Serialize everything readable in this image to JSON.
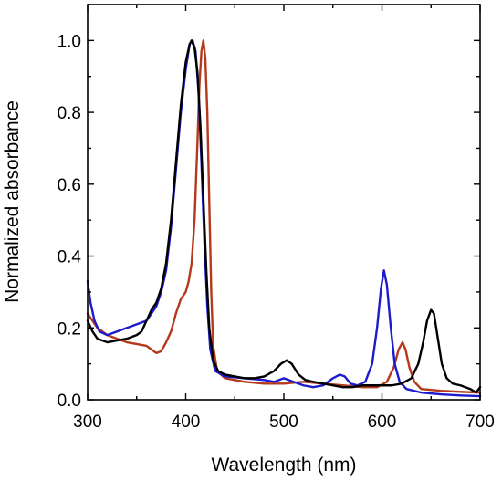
{
  "chart_data": {
    "type": "line",
    "title": "",
    "xlabel": "Wavelength (nm)",
    "ylabel": "Normalized absorbance",
    "xlim": [
      300,
      700
    ],
    "ylim": [
      0.0,
      1.1
    ],
    "x_ticks": [
      300,
      400,
      500,
      600,
      700
    ],
    "x_tick_labels": [
      "300",
      "400",
      "500",
      "600",
      "700"
    ],
    "y_ticks": [
      0.0,
      0.2,
      0.4,
      0.6,
      0.8,
      1.0
    ],
    "y_tick_labels": [
      "0.0",
      "0.2",
      "0.4",
      "0.6",
      "0.8",
      "1.0"
    ],
    "grid": false,
    "legend": "none",
    "series": [
      {
        "color": "#b5391c",
        "points": [
          [
            300,
            0.24
          ],
          [
            310,
            0.2
          ],
          [
            320,
            0.18
          ],
          [
            330,
            0.17
          ],
          [
            340,
            0.16
          ],
          [
            350,
            0.155
          ],
          [
            360,
            0.15
          ],
          [
            365,
            0.14
          ],
          [
            370,
            0.13
          ],
          [
            375,
            0.135
          ],
          [
            380,
            0.16
          ],
          [
            385,
            0.19
          ],
          [
            390,
            0.24
          ],
          [
            395,
            0.28
          ],
          [
            400,
            0.3
          ],
          [
            403,
            0.33
          ],
          [
            406,
            0.38
          ],
          [
            409,
            0.5
          ],
          [
            412,
            0.72
          ],
          [
            414,
            0.88
          ],
          [
            416,
            0.97
          ],
          [
            418,
            1.0
          ],
          [
            420,
            0.95
          ],
          [
            422,
            0.8
          ],
          [
            424,
            0.55
          ],
          [
            426,
            0.3
          ],
          [
            428,
            0.15
          ],
          [
            432,
            0.08
          ],
          [
            440,
            0.06
          ],
          [
            460,
            0.05
          ],
          [
            480,
            0.045
          ],
          [
            500,
            0.045
          ],
          [
            520,
            0.05
          ],
          [
            540,
            0.045
          ],
          [
            560,
            0.04
          ],
          [
            580,
            0.035
          ],
          [
            595,
            0.035
          ],
          [
            605,
            0.05
          ],
          [
            612,
            0.09
          ],
          [
            617,
            0.14
          ],
          [
            621,
            0.16
          ],
          [
            624,
            0.14
          ],
          [
            628,
            0.09
          ],
          [
            633,
            0.05
          ],
          [
            640,
            0.03
          ],
          [
            660,
            0.025
          ],
          [
            680,
            0.022
          ],
          [
            700,
            0.02
          ]
        ]
      },
      {
        "color": "#1c1ccc",
        "points": [
          [
            300,
            0.33
          ],
          [
            303,
            0.27
          ],
          [
            307,
            0.22
          ],
          [
            312,
            0.19
          ],
          [
            320,
            0.18
          ],
          [
            330,
            0.19
          ],
          [
            340,
            0.2
          ],
          [
            350,
            0.21
          ],
          [
            360,
            0.22
          ],
          [
            370,
            0.26
          ],
          [
            375,
            0.3
          ],
          [
            380,
            0.36
          ],
          [
            385,
            0.48
          ],
          [
            390,
            0.64
          ],
          [
            395,
            0.8
          ],
          [
            400,
            0.92
          ],
          [
            404,
            0.99
          ],
          [
            407,
            1.0
          ],
          [
            410,
            0.97
          ],
          [
            413,
            0.86
          ],
          [
            416,
            0.66
          ],
          [
            419,
            0.44
          ],
          [
            422,
            0.26
          ],
          [
            425,
            0.14
          ],
          [
            430,
            0.08
          ],
          [
            440,
            0.065
          ],
          [
            460,
            0.06
          ],
          [
            480,
            0.055
          ],
          [
            490,
            0.05
          ],
          [
            500,
            0.06
          ],
          [
            510,
            0.05
          ],
          [
            520,
            0.04
          ],
          [
            530,
            0.035
          ],
          [
            540,
            0.04
          ],
          [
            550,
            0.06
          ],
          [
            557,
            0.07
          ],
          [
            562,
            0.065
          ],
          [
            568,
            0.045
          ],
          [
            575,
            0.04
          ],
          [
            583,
            0.05
          ],
          [
            590,
            0.1
          ],
          [
            595,
            0.2
          ],
          [
            599,
            0.31
          ],
          [
            602,
            0.36
          ],
          [
            605,
            0.32
          ],
          [
            609,
            0.2
          ],
          [
            613,
            0.1
          ],
          [
            618,
            0.05
          ],
          [
            625,
            0.03
          ],
          [
            640,
            0.02
          ],
          [
            660,
            0.015
          ],
          [
            680,
            0.012
          ],
          [
            700,
            0.01
          ]
        ]
      },
      {
        "color": "#000000",
        "points": [
          [
            300,
            0.22
          ],
          [
            305,
            0.19
          ],
          [
            310,
            0.17
          ],
          [
            320,
            0.16
          ],
          [
            330,
            0.165
          ],
          [
            340,
            0.17
          ],
          [
            350,
            0.18
          ],
          [
            355,
            0.19
          ],
          [
            360,
            0.22
          ],
          [
            365,
            0.25
          ],
          [
            370,
            0.27
          ],
          [
            375,
            0.31
          ],
          [
            380,
            0.38
          ],
          [
            385,
            0.5
          ],
          [
            390,
            0.66
          ],
          [
            395,
            0.82
          ],
          [
            400,
            0.94
          ],
          [
            404,
            0.99
          ],
          [
            406,
            1.0
          ],
          [
            409,
            0.98
          ],
          [
            412,
            0.91
          ],
          [
            415,
            0.76
          ],
          [
            418,
            0.56
          ],
          [
            421,
            0.36
          ],
          [
            424,
            0.2
          ],
          [
            428,
            0.11
          ],
          [
            433,
            0.08
          ],
          [
            440,
            0.07
          ],
          [
            450,
            0.065
          ],
          [
            460,
            0.06
          ],
          [
            470,
            0.06
          ],
          [
            480,
            0.065
          ],
          [
            490,
            0.08
          ],
          [
            497,
            0.1
          ],
          [
            503,
            0.11
          ],
          [
            508,
            0.1
          ],
          [
            515,
            0.07
          ],
          [
            522,
            0.055
          ],
          [
            530,
            0.05
          ],
          [
            540,
            0.045
          ],
          [
            550,
            0.04
          ],
          [
            560,
            0.035
          ],
          [
            570,
            0.035
          ],
          [
            580,
            0.04
          ],
          [
            590,
            0.04
          ],
          [
            600,
            0.04
          ],
          [
            610,
            0.04
          ],
          [
            620,
            0.045
          ],
          [
            630,
            0.06
          ],
          [
            637,
            0.1
          ],
          [
            642,
            0.16
          ],
          [
            646,
            0.22
          ],
          [
            650,
            0.25
          ],
          [
            653,
            0.24
          ],
          [
            657,
            0.17
          ],
          [
            661,
            0.1
          ],
          [
            666,
            0.06
          ],
          [
            672,
            0.045
          ],
          [
            680,
            0.04
          ],
          [
            690,
            0.03
          ],
          [
            696,
            0.02
          ],
          [
            700,
            0.035
          ]
        ]
      }
    ]
  }
}
